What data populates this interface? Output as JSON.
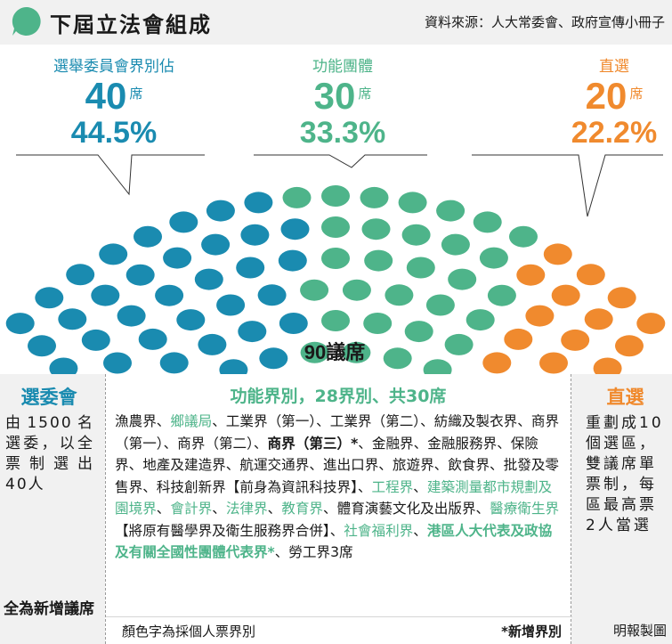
{
  "header": {
    "title": "下屆立法會組成",
    "source": "資料來源：人大常委會、政府宣傳小冊子"
  },
  "colors": {
    "election_committee": "#1a8bb0",
    "functional": "#4eb48a",
    "direct": "#f08a2e"
  },
  "categories": [
    {
      "label": "選舉委員會界別佔",
      "seats": "40",
      "seat_unit": "席",
      "percent": "44.5%"
    },
    {
      "label": "功能團體",
      "seats": "30",
      "seat_unit": "席",
      "percent": "33.3%"
    },
    {
      "label": "直選",
      "seats": "20",
      "seat_unit": "席",
      "percent": "22.2%"
    }
  ],
  "total_label": "90議席",
  "election_committee_panel": {
    "heading": "選委會",
    "description": "由1500名選委，以全票制選出40人",
    "note": "全為新增議席"
  },
  "functional_panel": {
    "heading": "功能界別，28界別、共30席",
    "items": [
      {
        "text": "漁農界",
        "style": "normal"
      },
      {
        "text": "、",
        "style": "normal"
      },
      {
        "text": "鄉議局",
        "style": "green"
      },
      {
        "text": "、工業界（第一）、工業界（第二）、紡織及製衣界、商界（第一）、商界（第二）、",
        "style": "normal"
      },
      {
        "text": "商界（第三）*",
        "style": "bold"
      },
      {
        "text": "、金融界、金融服務界、保險界、地產及建造界、航運交通界、進出口界、旅遊界、飲食界、批發及零售界、科技創新界【前身為資訊科技界】、",
        "style": "normal"
      },
      {
        "text": "工程界",
        "style": "green"
      },
      {
        "text": "、",
        "style": "normal"
      },
      {
        "text": "建築測量都市規劃及園境界",
        "style": "green"
      },
      {
        "text": "、",
        "style": "normal"
      },
      {
        "text": "會計界",
        "style": "green"
      },
      {
        "text": "、",
        "style": "normal"
      },
      {
        "text": "法律界",
        "style": "green"
      },
      {
        "text": "、",
        "style": "normal"
      },
      {
        "text": "教育界",
        "style": "green"
      },
      {
        "text": "、體育演藝文化及出版界、",
        "style": "normal"
      },
      {
        "text": "醫療衛生界",
        "style": "green"
      },
      {
        "text": "【將原有醫學界及衛生服務界合併】、",
        "style": "normal"
      },
      {
        "text": "社會福利界",
        "style": "green"
      },
      {
        "text": "、",
        "style": "normal"
      },
      {
        "text": "港區人大代表及政協及有關全國性團體代表界*",
        "style": "green-bold"
      },
      {
        "text": "、勞工界3席",
        "style": "normal"
      }
    ],
    "legend_color": "顏色字為採個人票界別",
    "legend_new": "*新增界別"
  },
  "direct_panel": {
    "heading": "直選",
    "description": "重劃成10個選區，雙議席單票制，每區最高票2人當選"
  },
  "credit": "明報製圖",
  "chart_data": {
    "type": "parliament",
    "total_seats": 90,
    "series": [
      {
        "name": "選舉委員會界別",
        "value": 40,
        "percent": 44.5
      },
      {
        "name": "功能團體",
        "value": 30,
        "percent": 33.3
      },
      {
        "name": "直選",
        "value": 20,
        "percent": 22.2
      }
    ]
  }
}
